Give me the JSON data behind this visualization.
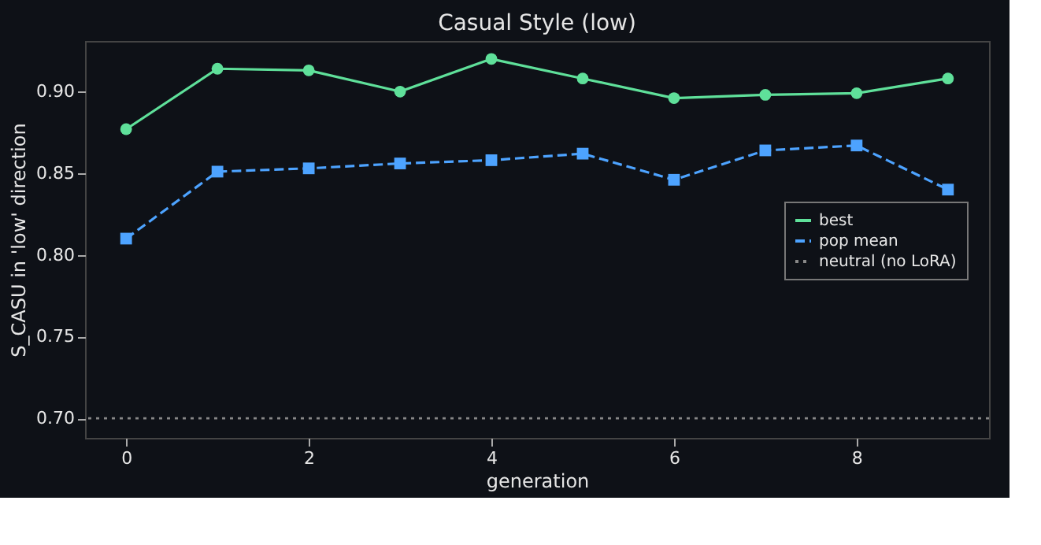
{
  "chart_data": {
    "type": "line",
    "title": "Casual Style (low)",
    "xlabel": "generation",
    "ylabel": "S_CASU in 'low' direction",
    "x": [
      0,
      1,
      2,
      3,
      4,
      5,
      6,
      7,
      8,
      9
    ],
    "series": [
      {
        "name": "best",
        "color": "#5fe09a",
        "marker": "circle",
        "line_style": "solid",
        "values": [
          0.877,
          0.914,
          0.913,
          0.9,
          0.92,
          0.908,
          0.896,
          0.898,
          0.899,
          0.908
        ]
      },
      {
        "name": "pop mean",
        "color": "#4da3ff",
        "marker": "square",
        "line_style": "dashed",
        "values": [
          0.81,
          0.851,
          0.853,
          0.856,
          0.858,
          0.862,
          0.846,
          0.864,
          0.867,
          0.84
        ]
      }
    ],
    "ref_lines": [
      {
        "axis": "y",
        "value": 0.7,
        "label": "neutral (no LoRA)",
        "color": "#888888",
        "line_style": "dotted"
      }
    ],
    "xlim": [
      -0.45,
      9.45
    ],
    "xticks": [
      0,
      2,
      4,
      6,
      8
    ],
    "ylim": [
      0.688,
      0.931
    ],
    "yticks": [
      {
        "value": 0.7,
        "label": "0.70"
      },
      0.75,
      {
        "value": 0.8,
        "label": "0.80"
      },
      0.85,
      {
        "value": 0.9,
        "label": "0.90"
      }
    ],
    "grid": false,
    "legend": "right"
  }
}
